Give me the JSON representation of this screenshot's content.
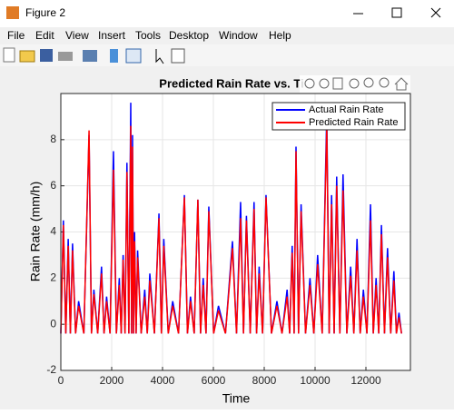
{
  "window": {
    "title": "Figure 2",
    "menu": [
      "File",
      "Edit",
      "View",
      "Insert",
      "Tools",
      "Desktop",
      "Window",
      "Help"
    ]
  },
  "chart_data": {
    "type": "line",
    "title": "Predicted Rain Rate vs. Ti",
    "x_label": "Time",
    "y_label": "Rain Rate (mm/h)",
    "xlim": [
      0,
      13750
    ],
    "xticks": [
      0,
      2000,
      4000,
      6000,
      8000,
      10000,
      12000
    ],
    "ylim": [
      -2,
      10
    ],
    "yticks": [
      -2,
      0,
      2,
      4,
      6,
      8
    ],
    "grid": true,
    "legend": "upper right",
    "x": [
      0,
      100,
      195,
      290,
      375,
      460,
      580,
      700,
      905,
      1110,
      1205,
      1300,
      1450,
      1600,
      1700,
      1800,
      1935,
      2070,
      2185,
      2300,
      2375,
      2450,
      2525,
      2600,
      2675,
      2750,
      2785,
      2820,
      2860,
      2900,
      2960,
      3020,
      3160,
      3300,
      3400,
      3500,
      3680,
      3860,
      3955,
      4050,
      4225,
      4400,
      4630,
      4860,
      4980,
      5100,
      5245,
      5390,
      5495,
      5600,
      5710,
      5820,
      6010,
      6200,
      6475,
      6750,
      6910,
      7070,
      7185,
      7300,
      7450,
      7600,
      7700,
      7800,
      7935,
      8070,
      8285,
      8500,
      8700,
      8900,
      9000,
      9100,
      9175,
      9250,
      9350,
      9450,
      9625,
      9800,
      9950,
      10100,
      10280,
      10460,
      10555,
      10650,
      10750,
      10850,
      10975,
      11100,
      11250,
      11400,
      11525,
      11650,
      11775,
      11900,
      12040,
      12180,
      12290,
      12400,
      12505,
      12610,
      12730,
      12850,
      12975,
      13100,
      13200,
      13300,
      13400
    ],
    "series": [
      {
        "name": "Actual Rain Rate",
        "color": "#0000ff",
        "values": [
          -0.4,
          4.5,
          -0.4,
          3.7,
          -0.4,
          3.5,
          -0.4,
          1.0,
          -0.4,
          8.2,
          -0.4,
          1.5,
          -0.4,
          2.5,
          -0.4,
          1.2,
          -0.4,
          7.5,
          -0.4,
          2.0,
          -0.4,
          3.0,
          -0.4,
          7.0,
          -0.4,
          9.6,
          -0.4,
          8.2,
          -0.4,
          4.0,
          -0.4,
          3.2,
          -0.4,
          1.5,
          -0.4,
          2.2,
          -0.4,
          4.8,
          -0.4,
          3.7,
          -0.4,
          1.0,
          -0.4,
          5.6,
          -0.4,
          1.2,
          -0.4,
          5.4,
          -0.4,
          2.0,
          -0.4,
          5.1,
          -0.4,
          0.8,
          -0.4,
          3.6,
          -0.4,
          5.3,
          -0.4,
          4.7,
          -0.4,
          5.3,
          -0.4,
          2.5,
          -0.4,
          5.6,
          -0.4,
          1.0,
          -0.4,
          1.5,
          -0.4,
          3.4,
          -0.4,
          7.7,
          -0.4,
          5.2,
          -0.4,
          2.0,
          -0.4,
          3.0,
          -0.4,
          9.2,
          -0.4,
          5.6,
          -0.4,
          6.4,
          -0.4,
          6.5,
          -0.4,
          2.5,
          -0.4,
          3.7,
          -0.4,
          1.5,
          -0.4,
          5.2,
          -0.4,
          2.0,
          -0.4,
          4.3,
          -0.4,
          3.3,
          -0.4,
          2.3,
          -0.4,
          0.5,
          -0.4
        ]
      },
      {
        "name": "Predicted Rain Rate",
        "color": "#ff0000",
        "values": [
          -0.4,
          4.3,
          -0.4,
          3.4,
          -0.4,
          3.2,
          -0.4,
          0.8,
          -0.4,
          8.4,
          -0.4,
          1.3,
          -0.4,
          2.2,
          -0.4,
          1.0,
          -0.4,
          6.7,
          -0.4,
          1.7,
          -0.4,
          2.8,
          -0.4,
          6.6,
          -0.4,
          8.6,
          -0.4,
          7.7,
          -0.4,
          3.6,
          -0.4,
          2.9,
          -0.4,
          1.2,
          -0.4,
          1.9,
          -0.4,
          4.6,
          -0.4,
          3.4,
          -0.4,
          0.8,
          -0.4,
          5.5,
          -0.4,
          1.0,
          -0.4,
          5.4,
          -0.4,
          1.7,
          -0.4,
          4.9,
          -0.4,
          0.6,
          -0.4,
          3.3,
          -0.4,
          4.6,
          -0.4,
          4.5,
          -0.4,
          5.0,
          -0.4,
          2.2,
          -0.4,
          5.5,
          -0.4,
          0.8,
          -0.4,
          1.2,
          -0.4,
          3.1,
          -0.4,
          7.5,
          -0.4,
          4.9,
          -0.4,
          1.7,
          -0.4,
          2.6,
          -0.4,
          8.6,
          -0.4,
          5.2,
          -0.4,
          6.0,
          -0.4,
          5.8,
          -0.4,
          2.1,
          -0.4,
          3.2,
          -0.4,
          1.2,
          -0.4,
          4.5,
          -0.4,
          1.7,
          -0.4,
          3.9,
          -0.4,
          2.9,
          -0.4,
          1.9,
          -0.4,
          0.3,
          -0.4
        ]
      }
    ]
  }
}
